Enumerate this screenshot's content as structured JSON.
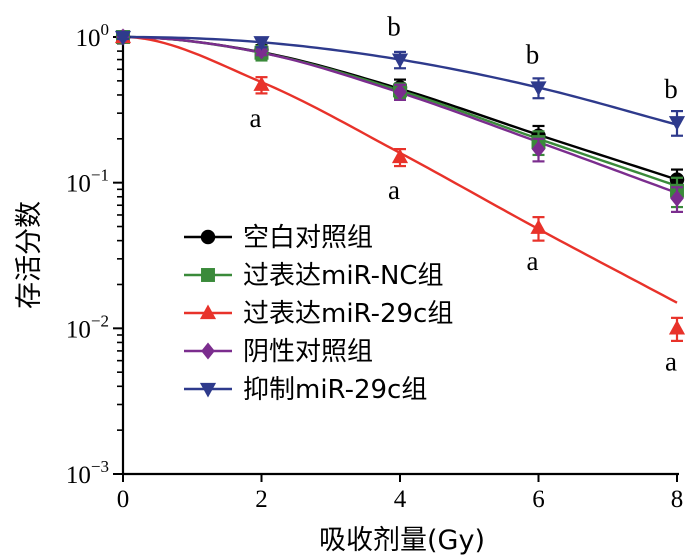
{
  "chart_data": {
    "type": "line",
    "xlabel": "吸收剂量(Gy)",
    "ylabel": "存活分数",
    "xlim": [
      0,
      8
    ],
    "ylim": [
      0.001,
      1
    ],
    "yscale": "log",
    "grid": false,
    "legend_position": "center-left",
    "x_ticks": [
      "0",
      "2",
      "4",
      "6",
      "8"
    ],
    "y_ticks": [
      {
        "base": "10",
        "exp": "0"
      },
      {
        "base": "10",
        "exp": "−1"
      },
      {
        "base": "10",
        "exp": "−2"
      },
      {
        "base": "10",
        "exp": "−3"
      }
    ],
    "series": [
      {
        "name": "空白对照组",
        "color": "#000000",
        "marker": "circle",
        "x": [
          0,
          2,
          4,
          6,
          8
        ],
        "y": [
          1.0,
          0.82,
          0.45,
          0.21,
          0.105
        ],
        "err": [
          0.03,
          0.06,
          0.06,
          0.035,
          0.018
        ],
        "curve": [
          1.0,
          0.787,
          0.441,
          0.213,
          0.105
        ]
      },
      {
        "name": "过表达miR-NC组",
        "color": "#3a8a3a",
        "marker": "square",
        "x": [
          0,
          2,
          4,
          6,
          8
        ],
        "y": [
          1.0,
          0.78,
          0.43,
          0.19,
          0.088
        ],
        "err": [
          0.03,
          0.09,
          0.05,
          0.035,
          0.02
        ],
        "curve": [
          1.0,
          0.78,
          0.429,
          0.2,
          0.095
        ]
      },
      {
        "name": "过表达miR-29c组",
        "color": "#e8322a",
        "marker": "triangle-up",
        "x": [
          0,
          2,
          4,
          6,
          8
        ],
        "y": [
          1.0,
          0.47,
          0.15,
          0.049,
          0.01
        ],
        "err": [
          0.03,
          0.06,
          0.02,
          0.009,
          0.0018
        ],
        "curve": [
          1.0,
          0.49,
          0.16,
          0.048,
          0.015
        ]
      },
      {
        "name": "阴性对照组",
        "color": "#7b2d8e",
        "marker": "diamond",
        "x": [
          0,
          2,
          4,
          6,
          8
        ],
        "y": [
          1.0,
          0.8,
          0.42,
          0.17,
          0.078
        ],
        "err": [
          0.03,
          0.05,
          0.05,
          0.03,
          0.015
        ],
        "curve": [
          1.0,
          0.78,
          0.415,
          0.19,
          0.085
        ]
      },
      {
        "name": "抑制miR-29c组",
        "color": "#2e3a8c",
        "marker": "triangle-down",
        "x": [
          0,
          2,
          4,
          6,
          8
        ],
        "y": [
          1.0,
          0.92,
          0.7,
          0.45,
          0.26
        ],
        "err": [
          0.03,
          0.07,
          0.09,
          0.07,
          0.05
        ],
        "curve": [
          1.0,
          0.92,
          0.7,
          0.45,
          0.25
        ]
      }
    ],
    "annotations": [
      {
        "text": "a",
        "x": 2,
        "y": 0.47,
        "pos": "below"
      },
      {
        "text": "a",
        "x": 4,
        "y": 0.15,
        "pos": "below"
      },
      {
        "text": "a",
        "x": 6,
        "y": 0.049,
        "pos": "below"
      },
      {
        "text": "a",
        "x": 8,
        "y": 0.01,
        "pos": "below"
      },
      {
        "text": "b",
        "x": 4,
        "y": 0.7,
        "pos": "above"
      },
      {
        "text": "b",
        "x": 6,
        "y": 0.45,
        "pos": "above"
      },
      {
        "text": "b",
        "x": 8,
        "y": 0.26,
        "pos": "above"
      }
    ]
  }
}
